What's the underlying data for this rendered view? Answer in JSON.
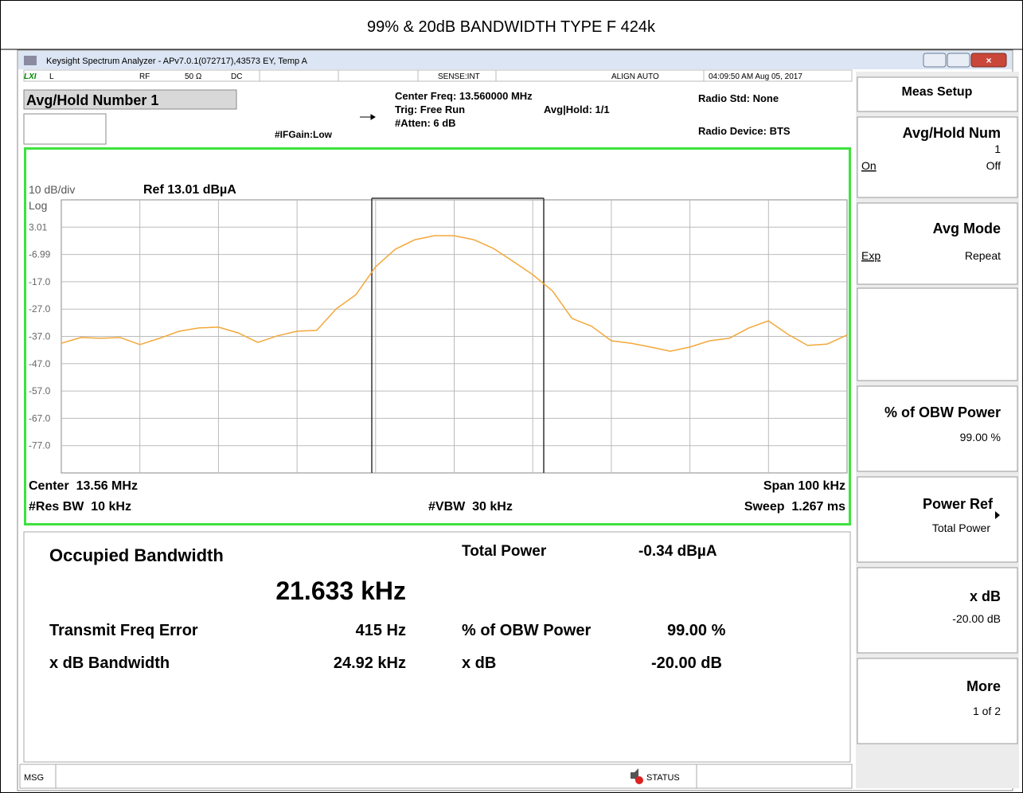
{
  "title": "99% & 20dB BANDWIDTH TYPE F 424k",
  "window": {
    "title": "Keysight Spectrum Analyzer - APv7.0.1(072717),43573 EY, Temp A"
  },
  "status_row": {
    "mode": "L",
    "input": "RF",
    "impedance": "50 Ω",
    "coupling": "DC",
    "sense": "SENSE:INT",
    "align": "ALIGN AUTO",
    "datetime": "04:09:50 AM Aug 05, 2017"
  },
  "header": {
    "active_function": "Avg/Hold Number 1",
    "center_freq": "Center Freq: 13.560000 MHz",
    "trig": "Trig: Free Run",
    "avg_hold": "Avg|Hold: 1/1",
    "ifgain": "#IFGain:Low",
    "atten": "#Atten: 6 dB",
    "radio_std": "Radio Std: None",
    "radio_device": "Radio Device: BTS"
  },
  "graph": {
    "scale": "10 dB/div",
    "ref": "Ref 13.01 dBµA",
    "log": "Log",
    "ylim": [
      -86.99,
      13.01
    ],
    "yticks": [
      3.01,
      -6.99,
      {
        "value": -16.99,
        "label": "-17.0"
      },
      {
        "value": -26.99,
        "label": "-27.0"
      },
      {
        "value": -36.99,
        "label": "-37.0"
      },
      {
        "value": -46.99,
        "label": "-47.0"
      },
      {
        "value": -56.99,
        "label": "-57.0"
      },
      {
        "value": -66.99,
        "label": "-67.0"
      },
      {
        "value": -76.99,
        "label": "-77.0"
      }
    ],
    "trace_color": "#f3a83b",
    "trace": [
      -39.5,
      -37.4,
      -37.7,
      -37.4,
      -40.0,
      -37.7,
      -35.1,
      -33.9,
      -33.6,
      -35.7,
      -39.2,
      -36.8,
      -35.1,
      -34.8,
      -26.9,
      -21.7,
      -11.5,
      -5.1,
      -1.6,
      -0.1,
      -0.1,
      -1.6,
      -4.8,
      -9.5,
      -14.4,
      -20.3,
      -30.4,
      -33.3,
      -38.6,
      -39.5,
      -40.9,
      -42.4,
      -40.9,
      -38.6,
      -37.7,
      -33.9,
      -31.3,
      -36.3,
      -40.3,
      -39.8,
      -36.5
    ],
    "center": "Center  13.56 MHz",
    "span": "Span 100 kHz",
    "res_bw": "#Res BW  10 kHz",
    "vbw": "#VBW  30 kHz",
    "sweep": "Sweep  1.267 ms"
  },
  "results": {
    "obw_label": "Occupied Bandwidth",
    "obw_value": "21.633 kHz",
    "total_power_label": "Total Power",
    "total_power_value": "-0.34 dBµA",
    "freq_error_label": "Transmit Freq Error",
    "freq_error_value": "415 Hz",
    "obw_power_label": "% of OBW Power",
    "obw_power_value": "99.00 %",
    "xdb_bw_label": "x dB Bandwidth",
    "xdb_bw_value": "24.92 kHz",
    "xdb_label": "x dB",
    "xdb_value": "-20.00 dB"
  },
  "softkeys": {
    "menu": "Meas Setup",
    "avg_hold_num": {
      "label": "Avg/Hold Num",
      "value": "1",
      "on": "On",
      "off": "Off"
    },
    "avg_mode": {
      "label": "Avg Mode",
      "exp": "Exp",
      "repeat": "Repeat"
    },
    "obw_power": {
      "label": "% of OBW Power",
      "value": "99.00 %"
    },
    "power_ref": {
      "label": "Power Ref",
      "value": "Total Power"
    },
    "xdb": {
      "label": "x dB",
      "value": "-20.00 dB"
    },
    "more": {
      "label": "More",
      "value": "1 of 2"
    }
  },
  "bottom_bar": {
    "msg": "MSG",
    "status": "STATUS"
  }
}
